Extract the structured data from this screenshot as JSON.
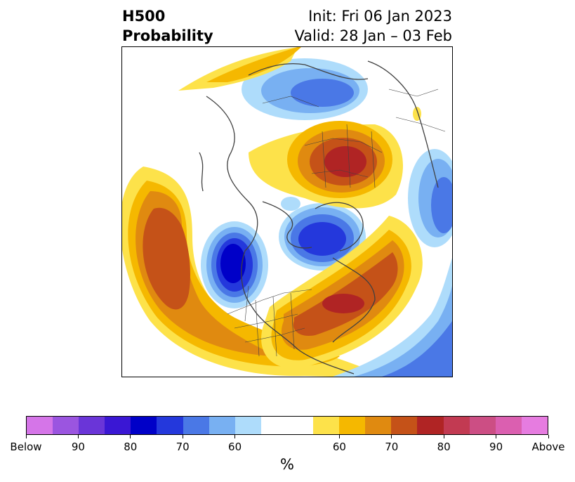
{
  "header": {
    "title_line1": "H500",
    "title_line2": "Probability",
    "init_text": "Init: Fri 06 Jan 2023",
    "valid_text": "Valid: 28 Jan – 03 Feb"
  },
  "map": {
    "projection": "north-polar-stereographic",
    "features": [
      "coastlines",
      "country-borders",
      "us-state-borders"
    ]
  },
  "colorbar": {
    "colors": [
      "#d575e8",
      "#9b55e0",
      "#6a35d8",
      "#3a17d4",
      "#0000c8",
      "#2438dc",
      "#4a78e6",
      "#78b0f2",
      "#aedcfb",
      "#ffffff",
      "#ffffff",
      "#fde24a",
      "#f5b800",
      "#e08a10",
      "#c55218",
      "#b02424",
      "#c23a52",
      "#cc4e84",
      "#db5fb0",
      "#e67ce0"
    ],
    "tick_labels": [
      "Below",
      "90",
      "80",
      "70",
      "60",
      "60",
      "70",
      "80",
      "90",
      "Above"
    ],
    "unit": "%"
  }
}
